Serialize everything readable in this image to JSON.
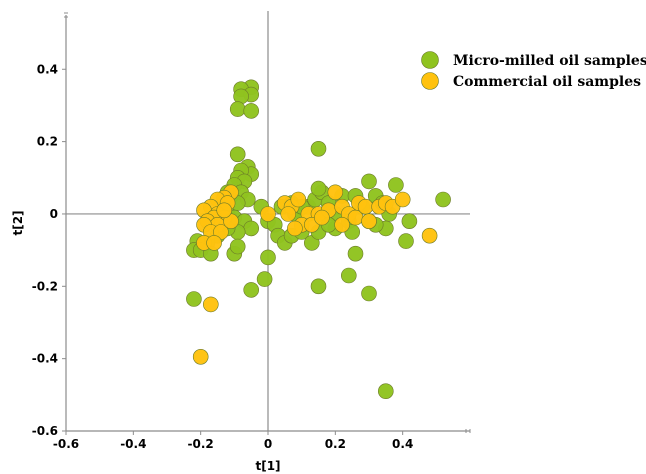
{
  "chart_data": {
    "type": "scatter",
    "title": "",
    "xlabel": "t[1]",
    "ylabel": "t[2]",
    "xlim": [
      -0.6,
      0.6
    ],
    "ylim": [
      -0.6,
      0.55
    ],
    "xticks": [
      -0.6,
      -0.4,
      -0.2,
      0,
      0.2,
      0.4
    ],
    "yticks": [
      -0.6,
      -0.4,
      -0.2,
      0,
      0.2,
      0.4
    ],
    "xtick_labels": [
      "-0.6",
      "-0.4",
      "-0.2",
      "0",
      "0.2",
      "0.4"
    ],
    "ytick_labels": [
      "-0.6",
      "-0.4",
      "-0.2",
      "0",
      "0.2",
      "0.4"
    ],
    "grid": false,
    "legend_position": "top-right",
    "series": [
      {
        "name": "Micro-milled oil samples",
        "color": "#8fc31f",
        "points": [
          [
            -0.05,
            0.35
          ],
          [
            -0.08,
            0.345
          ],
          [
            -0.05,
            0.33
          ],
          [
            -0.08,
            0.325
          ],
          [
            -0.09,
            0.29
          ],
          [
            -0.05,
            0.285
          ],
          [
            -0.09,
            0.165
          ],
          [
            0.15,
            0.18
          ],
          [
            -0.06,
            0.13
          ],
          [
            -0.05,
            0.11
          ],
          [
            -0.08,
            0.12
          ],
          [
            -0.09,
            0.1
          ],
          [
            -0.07,
            0.09
          ],
          [
            -0.1,
            0.08
          ],
          [
            -0.12,
            0.06
          ],
          [
            -0.11,
            0.05
          ],
          [
            -0.13,
            0.03
          ],
          [
            -0.08,
            0.06
          ],
          [
            -0.06,
            0.04
          ],
          [
            -0.09,
            0.03
          ],
          [
            -0.12,
            0.0
          ],
          [
            -0.1,
            -0.01
          ],
          [
            -0.07,
            -0.02
          ],
          [
            -0.05,
            -0.04
          ],
          [
            -0.09,
            -0.05
          ],
          [
            -0.12,
            -0.04
          ],
          [
            -0.15,
            -0.06
          ],
          [
            -0.18,
            -0.08
          ],
          [
            -0.21,
            -0.075
          ],
          [
            -0.22,
            -0.1
          ],
          [
            -0.2,
            -0.1
          ],
          [
            -0.17,
            -0.11
          ],
          [
            -0.1,
            -0.11
          ],
          [
            -0.09,
            -0.09
          ],
          [
            -0.02,
            0.02
          ],
          [
            0.0,
            -0.02
          ],
          [
            0.02,
            -0.03
          ],
          [
            0.03,
            -0.06
          ],
          [
            0.0,
            -0.12
          ],
          [
            0.05,
            -0.08
          ],
          [
            0.07,
            -0.06
          ],
          [
            0.1,
            -0.05
          ],
          [
            0.13,
            -0.08
          ],
          [
            0.15,
            -0.05
          ],
          [
            0.04,
            0.02
          ],
          [
            0.07,
            0.03
          ],
          [
            0.09,
            0.01
          ],
          [
            0.12,
            0.02
          ],
          [
            0.14,
            0.04
          ],
          [
            0.16,
            0.06
          ],
          [
            0.15,
            0.07
          ],
          [
            0.18,
            0.03
          ],
          [
            0.2,
            0.0
          ],
          [
            0.22,
            0.05
          ],
          [
            0.24,
            -0.02
          ],
          [
            0.2,
            -0.04
          ],
          [
            0.26,
            0.05
          ],
          [
            0.28,
            0.02
          ],
          [
            0.3,
            0.09
          ],
          [
            0.32,
            0.05
          ],
          [
            0.34,
            0.03
          ],
          [
            0.36,
            0.0
          ],
          [
            0.38,
            0.08
          ],
          [
            0.35,
            -0.04
          ],
          [
            0.32,
            -0.03
          ],
          [
            0.3,
            -0.02
          ],
          [
            0.25,
            -0.05
          ],
          [
            0.41,
            -0.075
          ],
          [
            0.42,
            -0.02
          ],
          [
            0.52,
            0.04
          ],
          [
            0.26,
            -0.11
          ],
          [
            0.24,
            -0.17
          ],
          [
            0.3,
            -0.22
          ],
          [
            0.15,
            -0.2
          ],
          [
            -0.01,
            -0.18
          ],
          [
            -0.05,
            -0.21
          ],
          [
            -0.22,
            -0.235
          ],
          [
            0.35,
            -0.49
          ],
          [
            0.08,
            0.0
          ],
          [
            0.1,
            0.02
          ],
          [
            0.18,
            -0.03
          ]
        ]
      },
      {
        "name": "Commercial oil samples",
        "color": "#ffc20e",
        "points": [
          [
            -0.11,
            0.06
          ],
          [
            -0.13,
            0.045
          ],
          [
            -0.15,
            0.04
          ],
          [
            -0.12,
            0.03
          ],
          [
            -0.17,
            0.02
          ],
          [
            -0.19,
            0.01
          ],
          [
            -0.15,
            0.0
          ],
          [
            -0.13,
            -0.01
          ],
          [
            -0.16,
            -0.01
          ],
          [
            -0.18,
            -0.02
          ],
          [
            -0.15,
            -0.03
          ],
          [
            -0.19,
            -0.03
          ],
          [
            -0.17,
            -0.05
          ],
          [
            -0.14,
            -0.05
          ],
          [
            -0.19,
            -0.08
          ],
          [
            -0.16,
            -0.08
          ],
          [
            -0.11,
            -0.02
          ],
          [
            -0.13,
            0.01
          ],
          [
            0.0,
            0.0
          ],
          [
            0.05,
            0.03
          ],
          [
            0.07,
            0.02
          ],
          [
            0.06,
            0.0
          ],
          [
            0.09,
            0.04
          ],
          [
            0.12,
            0.0
          ],
          [
            0.1,
            -0.03
          ],
          [
            0.08,
            -0.04
          ],
          [
            0.15,
            0.0
          ],
          [
            0.18,
            0.01
          ],
          [
            0.2,
            0.06
          ],
          [
            0.22,
            0.02
          ],
          [
            0.24,
            0.0
          ],
          [
            0.26,
            -0.01
          ],
          [
            0.27,
            0.03
          ],
          [
            0.29,
            0.02
          ],
          [
            0.3,
            -0.02
          ],
          [
            0.33,
            0.02
          ],
          [
            0.35,
            0.03
          ],
          [
            0.37,
            0.02
          ],
          [
            0.4,
            0.04
          ],
          [
            0.22,
            -0.03
          ],
          [
            0.13,
            -0.03
          ],
          [
            0.48,
            -0.06
          ],
          [
            -0.17,
            -0.25
          ],
          [
            -0.2,
            -0.395
          ],
          [
            0.16,
            -0.01
          ]
        ]
      }
    ]
  },
  "legend": {
    "items": [
      "Micro-milled oil samples",
      "Commercial oil samples"
    ]
  }
}
